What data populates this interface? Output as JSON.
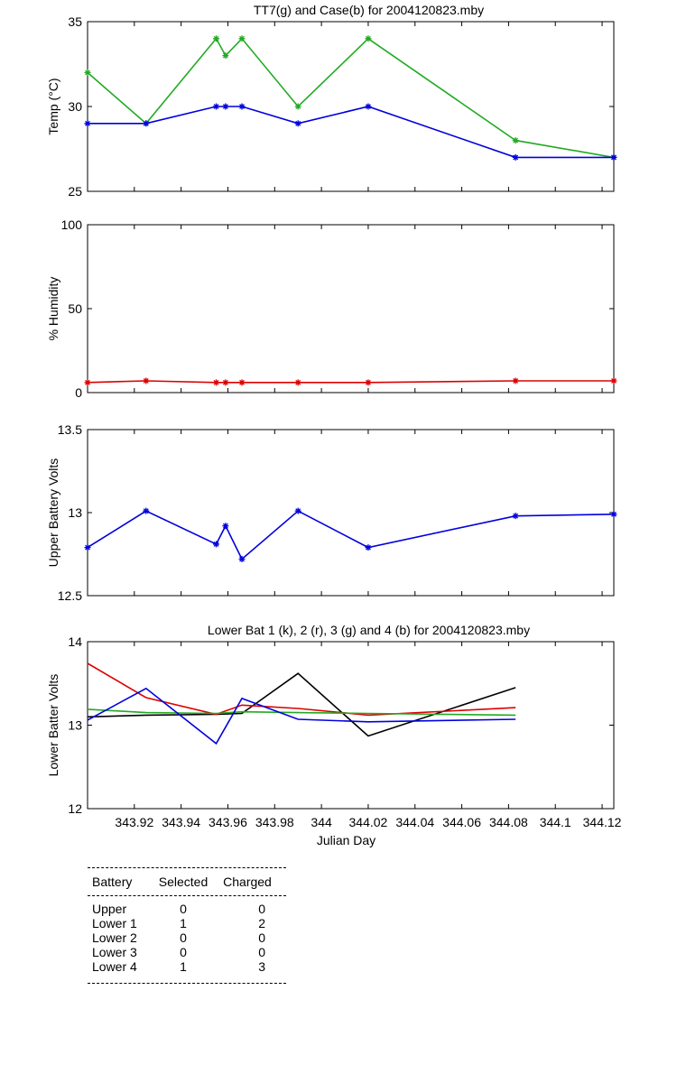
{
  "chart_data": [
    {
      "type": "line",
      "title": "TT7(g) and Case(b) for 2004120823.mby",
      "xlabel": "",
      "ylabel": "Temp (°C)",
      "ylim": [
        25,
        35
      ],
      "yticks": [
        25,
        30,
        35
      ],
      "xlim": [
        343.9,
        344.125
      ],
      "grid": false,
      "series": [
        {
          "color": "#22aa22",
          "marker": "star",
          "x": [
            343.9,
            343.925,
            343.955,
            343.959,
            343.966,
            343.99,
            344.02,
            344.083,
            344.125
          ],
          "y": [
            32,
            29,
            34,
            33,
            34,
            30,
            34,
            28,
            27
          ]
        },
        {
          "color": "#0000dd",
          "marker": "star",
          "x": [
            343.9,
            343.925,
            343.955,
            343.959,
            343.966,
            343.99,
            344.02,
            344.083,
            344.125
          ],
          "y": [
            29,
            29,
            30,
            30,
            30,
            29,
            30,
            27,
            27
          ]
        }
      ]
    },
    {
      "type": "line",
      "title": "",
      "xlabel": "",
      "ylabel": "% Humidity",
      "ylim": [
        0,
        100
      ],
      "yticks": [
        0,
        50,
        100
      ],
      "xlim": [
        343.9,
        344.125
      ],
      "grid": false,
      "series": [
        {
          "color": "#dd0000",
          "marker": "star",
          "x": [
            343.9,
            343.925,
            343.955,
            343.959,
            343.966,
            343.99,
            344.02,
            344.083,
            344.125
          ],
          "y": [
            6,
            7,
            6,
            6,
            6,
            6,
            6,
            7,
            7
          ]
        }
      ]
    },
    {
      "type": "line",
      "title": "",
      "xlabel": "",
      "ylabel": "Upper Battery Volts",
      "ylim": [
        12.5,
        13.5
      ],
      "yticks": [
        12.5,
        13,
        13.5
      ],
      "xlim": [
        343.9,
        344.125
      ],
      "grid": false,
      "series": [
        {
          "color": "#0000dd",
          "marker": "star",
          "x": [
            343.9,
            343.925,
            343.955,
            343.959,
            343.966,
            343.99,
            344.02,
            344.083,
            344.125
          ],
          "y": [
            12.79,
            13.01,
            12.81,
            12.92,
            12.72,
            13.01,
            12.79,
            12.98,
            12.99
          ]
        }
      ]
    },
    {
      "type": "line",
      "title": "Lower Bat 1 (k), 2 (r), 3 (g) and 4 (b) for 2004120823.mby",
      "xlabel": "Julian Day",
      "ylabel": "Lower Batter Volts",
      "ylim": [
        12,
        14
      ],
      "yticks": [
        12,
        13,
        14
      ],
      "xlim": [
        343.9,
        344.125
      ],
      "xticks": [
        343.92,
        343.94,
        343.96,
        343.98,
        344,
        344.02,
        344.04,
        344.06,
        344.08,
        344.1,
        344.12
      ],
      "xticklabels": [
        "343.92",
        "343.94",
        "343.96",
        "343.98",
        "344",
        "344.02",
        "344.04",
        "344.06",
        "344.08",
        "344.1",
        "344.12"
      ],
      "grid": false,
      "series": [
        {
          "color": "#000000",
          "x": [
            343.9,
            343.925,
            343.955,
            343.966,
            343.99,
            344.02,
            344.083
          ],
          "y": [
            13.1,
            13.12,
            13.13,
            13.14,
            13.62,
            12.87,
            13.45
          ]
        },
        {
          "color": "#dd0000",
          "x": [
            343.9,
            343.925,
            343.955,
            343.966,
            343.99,
            344.02,
            344.083
          ],
          "y": [
            13.74,
            13.33,
            13.13,
            13.24,
            13.2,
            13.12,
            13.21
          ]
        },
        {
          "color": "#22aa22",
          "x": [
            343.9,
            343.925,
            343.955,
            343.966,
            343.99,
            344.02,
            344.083
          ],
          "y": [
            13.19,
            13.15,
            13.14,
            13.16,
            13.15,
            13.14,
            13.12
          ]
        },
        {
          "color": "#0000dd",
          "x": [
            343.9,
            343.925,
            343.955,
            343.966,
            343.99,
            344.02,
            344.083
          ],
          "y": [
            13.06,
            13.44,
            12.78,
            13.32,
            13.07,
            13.04,
            13.07
          ]
        }
      ]
    }
  ],
  "battery_table": {
    "headers": [
      "Battery",
      "Selected",
      "Charged"
    ],
    "rows": [
      {
        "battery": "Upper",
        "selected": "0",
        "charged": "0"
      },
      {
        "battery": "Lower 1",
        "selected": "1",
        "charged": "2"
      },
      {
        "battery": "Lower 2",
        "selected": "0",
        "charged": "0"
      },
      {
        "battery": "Lower 3",
        "selected": "0",
        "charged": "0"
      },
      {
        "battery": "Lower 4",
        "selected": "1",
        "charged": "3"
      }
    ]
  }
}
